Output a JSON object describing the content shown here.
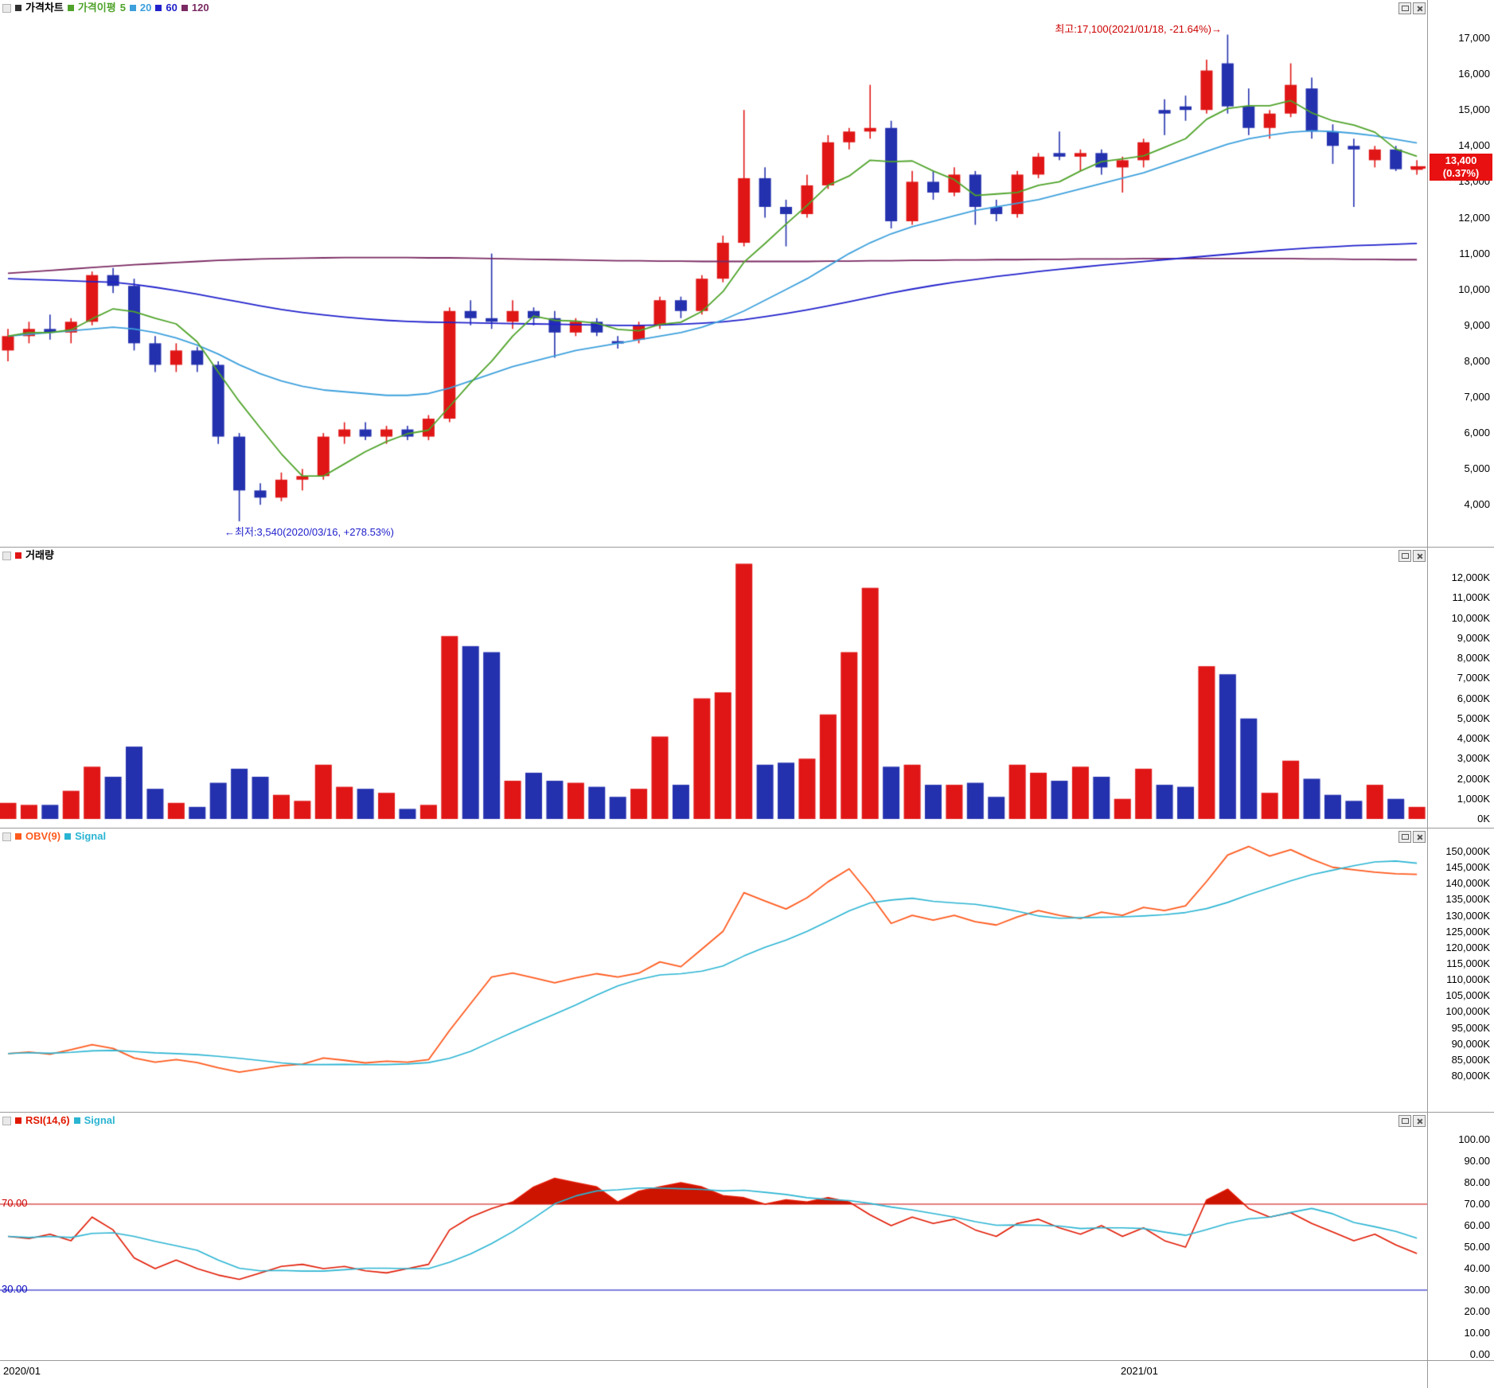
{
  "colors": {
    "up": "#e01616",
    "down": "#2431ae",
    "ma5": "#4fa32a",
    "ma20": "#3da0dc",
    "ma60": "#2121cc",
    "ma120": "#7a2a62",
    "obv": "#ff5a1e",
    "signal": "#2ab4d2",
    "rsi": "#e01800",
    "rsi_fill": "#cc1400",
    "level70": "#cc0000",
    "level30": "#0000bb",
    "badge_bg": "#e81010",
    "title_marker": "#303030",
    "volume_marker": "#e01616"
  },
  "panels": {
    "price": {
      "title": "가격차트",
      "legend": {
        "label": "가격이평",
        "items": [
          "5",
          "20",
          "60",
          "120"
        ]
      },
      "high_annotation": "최고:17,100(2021/01/18, -21.64%)→",
      "low_annotation": "←최저:3,540(2020/03/16, +278.53%)",
      "current": {
        "value": "13,400",
        "change": "(0.37%)"
      },
      "axis_ticks": [
        "17,000",
        "16,000",
        "15,000",
        "14,000",
        "13,000",
        "12,000",
        "11,000",
        "10,000",
        "9,000",
        "8,000",
        "7,000",
        "6,000",
        "5,000",
        "4,000"
      ]
    },
    "volume": {
      "title": "거래량",
      "axis_ticks": [
        "12,000K",
        "11,000K",
        "10,000K",
        "9,000K",
        "8,000K",
        "7,000K",
        "6,000K",
        "5,000K",
        "4,000K",
        "3,000K",
        "2,000K",
        "1,000K",
        "0K"
      ]
    },
    "obv": {
      "title": "OBV(9)",
      "signal_label": "Signal",
      "axis_ticks": [
        "150,000K",
        "145,000K",
        "140,000K",
        "135,000K",
        "130,000K",
        "125,000K",
        "120,000K",
        "115,000K",
        "110,000K",
        "105,000K",
        "100,000K",
        "95,000K",
        "90,000K",
        "85,000K",
        "80,000K"
      ]
    },
    "rsi": {
      "title": "RSI(14,6)",
      "signal_label": "Signal",
      "overbought_label": "70.00",
      "oversold_label": "30.00",
      "axis_ticks": [
        "100.00",
        "90.00",
        "80.00",
        "70.00",
        "60.00",
        "50.00",
        "40.00",
        "30.00",
        "20.00",
        "10.00",
        "0.00"
      ]
    }
  },
  "time_axis": {
    "labels": [
      "2020/01",
      "2021/01"
    ]
  },
  "chart_data": [
    {
      "type": "candlestick",
      "title": "가격차트",
      "ylim": [
        3300,
        17800
      ],
      "ma_periods": [
        5,
        20,
        60,
        120
      ],
      "high_point": {
        "price": 17100,
        "date": "2021/01/18",
        "pct_from_current": "-21.64%"
      },
      "low_point": {
        "price": 3540,
        "date": "2020/03/16",
        "pct_from_current": "+278.53%"
      },
      "current_price": 13400,
      "current_change_pct": "0.37%",
      "ohlc": [
        [
          8300,
          8900,
          8000,
          8700
        ],
        [
          8700,
          9100,
          8500,
          8900
        ],
        [
          8900,
          9300,
          8600,
          8800
        ],
        [
          8800,
          9200,
          8500,
          9100
        ],
        [
          9100,
          10500,
          9000,
          10400
        ],
        [
          10400,
          10600,
          9900,
          10100
        ],
        [
          10100,
          10300,
          8300,
          8500
        ],
        [
          8500,
          8700,
          7700,
          7900
        ],
        [
          7900,
          8500,
          7700,
          8300
        ],
        [
          8300,
          8400,
          7700,
          7900
        ],
        [
          7900,
          8000,
          5700,
          5900
        ],
        [
          5900,
          6000,
          3540,
          4400
        ],
        [
          4400,
          4600,
          4000,
          4200
        ],
        [
          4200,
          4900,
          4100,
          4700
        ],
        [
          4700,
          5000,
          4400,
          4800
        ],
        [
          4800,
          6000,
          4700,
          5900
        ],
        [
          5900,
          6300,
          5700,
          6100
        ],
        [
          6100,
          6300,
          5800,
          5900
        ],
        [
          5900,
          6200,
          5700,
          6100
        ],
        [
          6100,
          6200,
          5800,
          5900
        ],
        [
          5900,
          6500,
          5800,
          6400
        ],
        [
          6400,
          9500,
          6300,
          9400
        ],
        [
          9400,
          9700,
          9000,
          9200
        ],
        [
          9200,
          11000,
          8900,
          9100
        ],
        [
          9100,
          9700,
          8900,
          9400
        ],
        [
          9400,
          9500,
          9000,
          9200
        ],
        [
          9200,
          9400,
          8100,
          8800
        ],
        [
          8800,
          9200,
          8700,
          9100
        ],
        [
          9100,
          9200,
          8700,
          8800
        ],
        [
          8560,
          8700,
          8350,
          8540
        ],
        [
          8600,
          9100,
          8500,
          9000
        ],
        [
          9000,
          9800,
          8900,
          9700
        ],
        [
          9700,
          9800,
          9200,
          9400
        ],
        [
          9400,
          10400,
          9300,
          10300
        ],
        [
          10300,
          11500,
          10200,
          11300
        ],
        [
          11300,
          15000,
          11200,
          13100
        ],
        [
          13100,
          13400,
          12000,
          12300
        ],
        [
          12300,
          12500,
          11200,
          12100
        ],
        [
          12100,
          13200,
          12000,
          12900
        ],
        [
          12900,
          14300,
          12800,
          14100
        ],
        [
          14100,
          14500,
          13900,
          14400
        ],
        [
          14400,
          15700,
          14200,
          14500
        ],
        [
          14500,
          14700,
          11700,
          11900
        ],
        [
          11900,
          13300,
          11800,
          13000
        ],
        [
          13000,
          13300,
          12500,
          12700
        ],
        [
          12700,
          13400,
          12600,
          13200
        ],
        [
          13200,
          13300,
          11800,
          12300
        ],
        [
          12300,
          12500,
          11900,
          12100
        ],
        [
          12100,
          13300,
          12000,
          13200
        ],
        [
          13200,
          13800,
          13100,
          13700
        ],
        [
          13800,
          14400,
          13600,
          13700
        ],
        [
          13700,
          13900,
          13300,
          13800
        ],
        [
          13800,
          13900,
          13200,
          13400
        ],
        [
          13400,
          13700,
          12700,
          13600
        ],
        [
          13600,
          14200,
          13400,
          14100
        ],
        [
          15000,
          15300,
          14300,
          14900
        ],
        [
          15100,
          15400,
          14700,
          15000
        ],
        [
          15000,
          16400,
          14900,
          16100
        ],
        [
          16300,
          17100,
          14900,
          15100
        ],
        [
          15100,
          15600,
          14300,
          14500
        ],
        [
          14500,
          15000,
          14200,
          14900
        ],
        [
          14900,
          16300,
          14800,
          15700
        ],
        [
          15600,
          15900,
          14200,
          14400
        ],
        [
          14400,
          14600,
          13500,
          14000
        ],
        [
          14000,
          14200,
          12300,
          13900
        ],
        [
          13600,
          14000,
          13400,
          13900
        ],
        [
          13900,
          14000,
          13300,
          13350
        ],
        [
          13350,
          13600,
          13200,
          13400
        ]
      ],
      "ma": {
        "ma20": [
          8700,
          8750,
          8800,
          8850,
          8900,
          8950,
          8900,
          8800,
          8650,
          8450,
          8200,
          7900,
          7650,
          7450,
          7300,
          7200,
          7150,
          7100,
          7050,
          7050,
          7100,
          7250,
          7450,
          7650,
          7850,
          8000,
          8150,
          8300,
          8400,
          8500,
          8600,
          8700,
          8800,
          8950,
          9150,
          9400,
          9700,
          10000,
          10300,
          10650,
          11000,
          11300,
          11550,
          11750,
          11900,
          12050,
          12200,
          12300,
          12400,
          12500,
          12650,
          12800,
          12950,
          13100,
          13250,
          13450,
          13650,
          13850,
          14050,
          14200,
          14300,
          14380,
          14420,
          14400,
          14350,
          14280,
          14180,
          14080
        ],
        "ma60": [
          10300,
          10280,
          10260,
          10240,
          10220,
          10200,
          10140,
          10060,
          9970,
          9870,
          9760,
          9650,
          9540,
          9440,
          9360,
          9290,
          9230,
          9180,
          9140,
          9110,
          9090,
          9080,
          9070,
          9060,
          9050,
          9040,
          9030,
          9020,
          9010,
          9000,
          9000,
          9010,
          9030,
          9060,
          9100,
          9160,
          9240,
          9330,
          9430,
          9540,
          9660,
          9780,
          9900,
          10010,
          10110,
          10200,
          10280,
          10360,
          10430,
          10500,
          10560,
          10620,
          10680,
          10730,
          10780,
          10830,
          10880,
          10930,
          10980,
          11030,
          11080,
          11120,
          11160,
          11190,
          11220,
          11240,
          11260,
          11280
        ],
        "ma120": [
          10450,
          10490,
          10530,
          10570,
          10610,
          10650,
          10690,
          10720,
          10750,
          10780,
          10810,
          10830,
          10850,
          10860,
          10870,
          10880,
          10890,
          10890,
          10890,
          10890,
          10880,
          10880,
          10870,
          10860,
          10850,
          10840,
          10830,
          10820,
          10810,
          10800,
          10800,
          10790,
          10790,
          10780,
          10780,
          10780,
          10780,
          10780,
          10780,
          10790,
          10790,
          10800,
          10800,
          10810,
          10810,
          10820,
          10820,
          10830,
          10830,
          10840,
          10840,
          10850,
          10850,
          10850,
          10860,
          10860,
          10860,
          10860,
          10860,
          10860,
          10860,
          10860,
          10850,
          10850,
          10840,
          10840,
          10830,
          10830
        ]
      }
    },
    {
      "type": "bar",
      "title": "거래량",
      "unit": "K",
      "ylim": [
        0,
        13450
      ],
      "values": [
        800,
        700,
        700,
        1400,
        2600,
        2100,
        3600,
        1500,
        800,
        600,
        1800,
        2500,
        2100,
        1200,
        900,
        2700,
        1600,
        1500,
        1300,
        500,
        700,
        9100,
        8600,
        8300,
        1900,
        2300,
        1900,
        1800,
        1600,
        1100,
        1500,
        4100,
        1700,
        6000,
        6300,
        12700,
        2700,
        2800,
        3000,
        5200,
        8300,
        11500,
        2600,
        2700,
        1700,
        1700,
        1800,
        1100,
        2700,
        2300,
        1900,
        2600,
        2100,
        1000,
        2500,
        1700,
        1600,
        7600,
        7200,
        5000,
        1300,
        2900,
        2000,
        1200,
        900,
        1700,
        1000,
        600
      ]
    },
    {
      "type": "line",
      "title": "OBV(9)",
      "unit": "K",
      "ylim": [
        78000,
        153000
      ],
      "series": [
        {
          "name": "OBV",
          "values": [
            87000,
            87500,
            86800,
            88200,
            89800,
            88600,
            85600,
            84300,
            85100,
            84200,
            82600,
            81200,
            82200,
            83200,
            83700,
            85600,
            84900,
            84100,
            84600,
            84300,
            85100,
            94200,
            102600,
            110900,
            112100,
            110600,
            109100,
            110600,
            111900,
            110900,
            112100,
            115600,
            114100,
            119600,
            125100,
            137200,
            134600,
            132100,
            135600,
            140600,
            144600,
            136600,
            127600,
            130100,
            128600,
            130100,
            128100,
            127100,
            129600,
            131600,
            130100,
            129100,
            131100,
            130100,
            132600,
            131600,
            133100,
            140700,
            148900,
            151600,
            148600,
            150600,
            147600,
            145100,
            144300,
            143600,
            143100,
            142900
          ]
        },
        {
          "name": "Signal",
          "derived": "sma(OBV,9)"
        }
      ]
    },
    {
      "type": "line",
      "title": "RSI(14,6)",
      "ylim": [
        0,
        100
      ],
      "levels": [
        70,
        30
      ],
      "series": [
        {
          "name": "RSI",
          "values": [
            55,
            54,
            56,
            53,
            64,
            58,
            45,
            40,
            44,
            40,
            37,
            35,
            38,
            41,
            42,
            40,
            41,
            39,
            38,
            40,
            42,
            58,
            64,
            68,
            71,
            78,
            82,
            80,
            78,
            71,
            76,
            78,
            80,
            78,
            74,
            73,
            70,
            72,
            71,
            73,
            71,
            65,
            60,
            64,
            61,
            63,
            58,
            55,
            61,
            63,
            59,
            56,
            60,
            55,
            59,
            53,
            50,
            72,
            77,
            68,
            64,
            66,
            61,
            57,
            53,
            56,
            51,
            47
          ]
        },
        {
          "name": "Signal",
          "derived": "sma(RSI,6)"
        }
      ]
    }
  ]
}
